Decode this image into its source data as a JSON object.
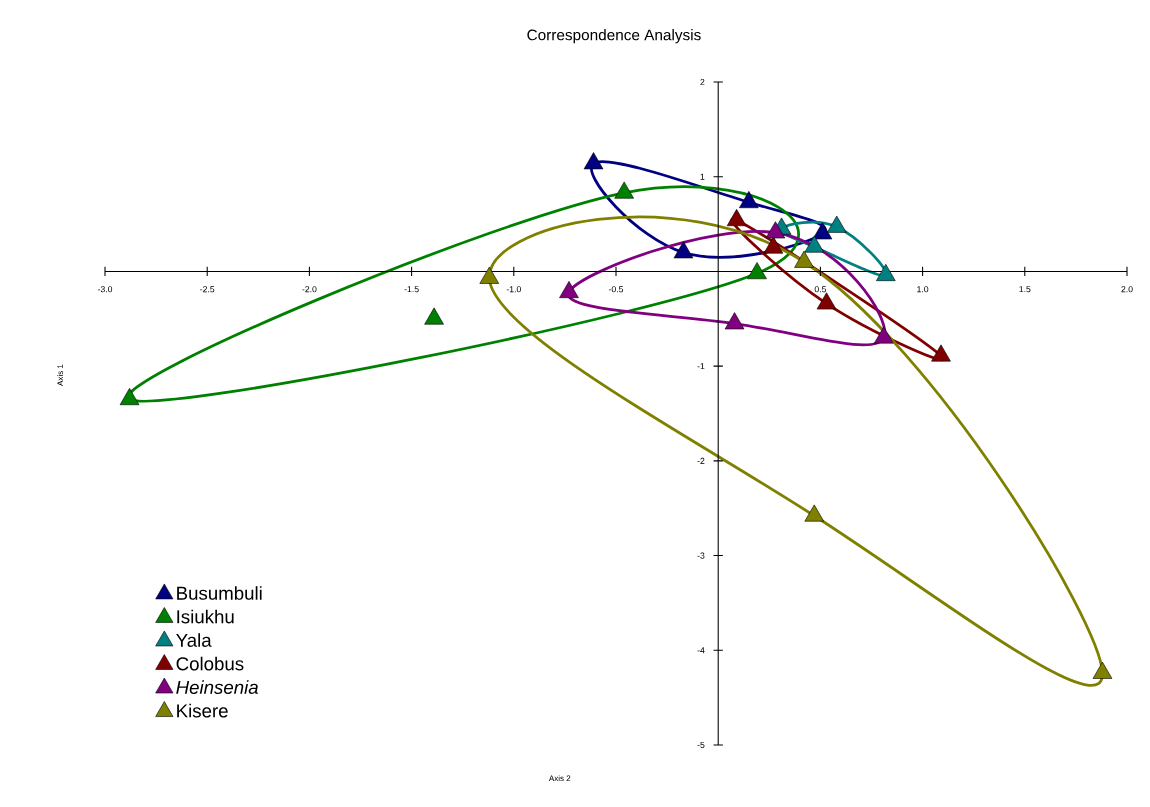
{
  "chart_data": {
    "type": "scatter",
    "title": "Correspondence Analysis",
    "xlabel": "Axis 2",
    "ylabel": "Axis 1",
    "xlim": [
      -3,
      2
    ],
    "ylim": [
      -5,
      2
    ],
    "xticks": [
      {
        "value": -3,
        "label": "-3.0"
      },
      {
        "value": -2.5,
        "label": "-2.5"
      },
      {
        "value": -2,
        "label": "-2.0"
      },
      {
        "value": -1.5,
        "label": "-1.5"
      },
      {
        "value": -1,
        "label": "-1.0"
      },
      {
        "value": -0.5,
        "label": "-0.5"
      },
      {
        "value": 0.5,
        "label": "0.5"
      },
      {
        "value": 1,
        "label": "1.0"
      },
      {
        "value": 1.5,
        "label": "1.5"
      },
      {
        "value": 2,
        "label": "2.0"
      }
    ],
    "yticks": [
      2,
      1,
      -1,
      -2,
      -3,
      -4,
      -5
    ],
    "marker": "triangle",
    "legend": "bottom left",
    "series": [
      {
        "name": "Busumbuli",
        "color": "#000080",
        "x": [
          -0.61,
          -0.17,
          0.15,
          0.51
        ],
        "values": [
          1.14,
          0.2,
          0.73,
          0.4
        ]
      },
      {
        "name": "Isiukhu",
        "color": "#008000",
        "x": [
          -2.88,
          -1.39,
          -0.46,
          0.19
        ],
        "values": [
          -1.35,
          -0.5,
          0.83,
          -0.02
        ]
      },
      {
        "name": "Yala",
        "color": "#008080",
        "x": [
          0.31,
          0.58,
          0.47,
          0.82
        ],
        "values": [
          0.45,
          0.47,
          0.26,
          -0.04
        ]
      },
      {
        "name": "Colobus",
        "color": "#800000",
        "x": [
          0.09,
          0.27,
          0.53,
          1.09
        ],
        "values": [
          0.54,
          0.25,
          -0.34,
          -0.89
        ]
      },
      {
        "name": "*Heinsenia*",
        "color": "#800080",
        "x": [
          -0.73,
          0.08,
          0.81,
          0.28
        ],
        "values": [
          -0.22,
          -0.55,
          -0.7,
          0.41
        ]
      },
      {
        "name": "Kisere",
        "color": "#808000",
        "x": [
          -1.12,
          0.42,
          0.47,
          1.88
        ],
        "values": [
          -0.07,
          0.1,
          -2.58,
          -4.24
        ]
      }
    ]
  }
}
